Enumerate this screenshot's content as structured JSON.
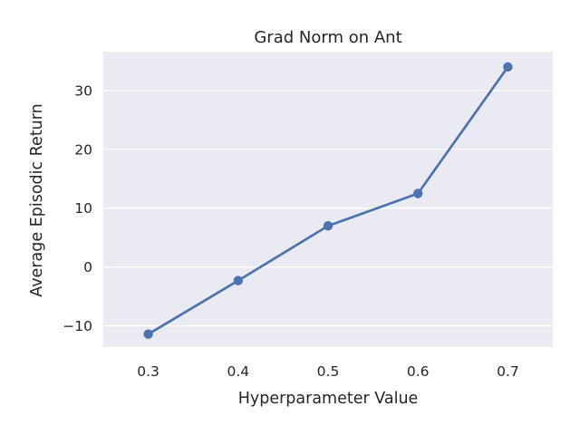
{
  "chart_data": {
    "type": "line",
    "title": "Grad Norm on Ant",
    "xlabel": "Hyperparameter Value",
    "ylabel": "Average Episodic Return",
    "x": [
      0.3,
      0.4,
      0.5,
      0.6,
      0.7
    ],
    "x_tick_labels": [
      "0.3",
      "0.4",
      "0.5",
      "0.6",
      "0.7"
    ],
    "y_ticks": [
      -10,
      0,
      10,
      20,
      30
    ],
    "y_tick_labels": [
      "−10",
      "0",
      "10",
      "20",
      "30"
    ],
    "series": [
      {
        "values": [
          -11.4,
          -2.3,
          7.0,
          12.5,
          34.0
        ],
        "color": "#4c72b0"
      }
    ],
    "xlim": [
      0.25,
      0.75
    ],
    "ylim": [
      -13.6,
      36.6
    ],
    "grid": true,
    "style": {
      "plot_background": "#eaeaf2",
      "grid_color": "#ffffff"
    }
  }
}
